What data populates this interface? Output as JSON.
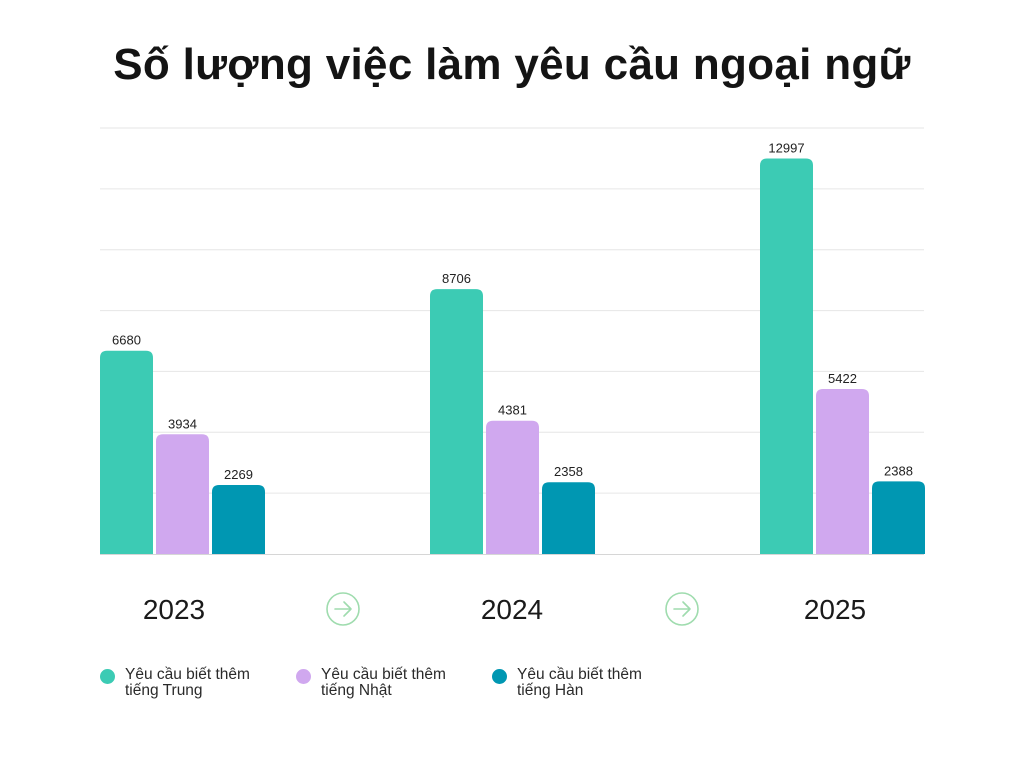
{
  "chart_data": {
    "type": "bar",
    "title": "Số lượng việc làm yêu cầu ngoại ngữ",
    "categories": [
      "2023",
      "2024",
      "2025"
    ],
    "series": [
      {
        "name": "Yêu cầu biết thêm tiếng Trung",
        "color": "#3ccbb4",
        "values": [
          6680,
          8706,
          12997
        ]
      },
      {
        "name": "Yêu cầu biết thêm tiếng Nhật",
        "color": "#d0a8ef",
        "values": [
          3934,
          4381,
          5422
        ]
      },
      {
        "name": "Yêu cầu biết thêm tiếng Hàn",
        "color": "#0097b2",
        "values": [
          2269,
          2358,
          2388
        ]
      }
    ],
    "xlabel": "",
    "ylabel": "",
    "ylim": [
      0,
      14000
    ],
    "grid": true,
    "legend_position": "bottom-left",
    "arrow_color": "#9fdcae"
  }
}
